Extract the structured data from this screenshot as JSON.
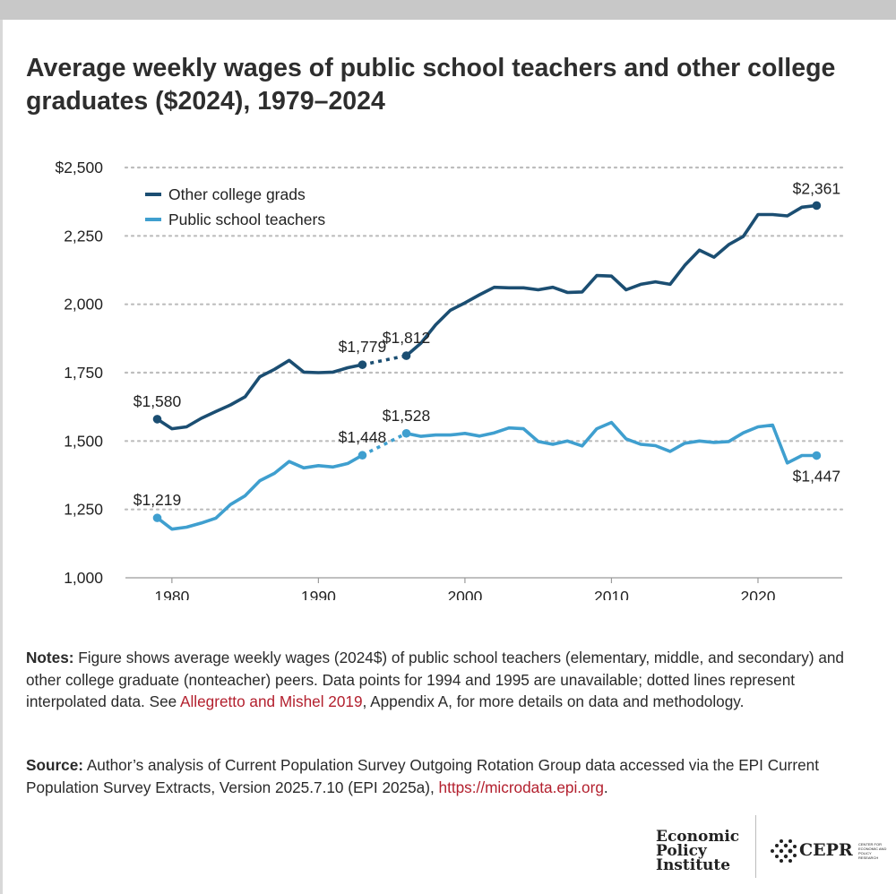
{
  "title": "Average weekly wages of public school teachers and other college graduates ($2024), 1979–2024",
  "chart_data": {
    "type": "line",
    "title": "Average weekly wages of public school teachers and other college graduates ($2024), 1979–2024",
    "xlabel": "",
    "ylabel": "",
    "xlim": [
      1977.5,
      2026
    ],
    "ylim": [
      1000,
      2500
    ],
    "x_ticks": [
      1980,
      1990,
      2000,
      2010,
      2020
    ],
    "x_tick_labels": [
      "1980",
      "1990",
      "2000",
      "2010",
      "2020"
    ],
    "y_ticks": [
      1000,
      1250,
      1500,
      1750,
      2000,
      2250,
      2500
    ],
    "y_tick_labels": [
      "1,000",
      "1,250",
      "1,500",
      "1,750",
      "2,000",
      "2,250",
      "$2,500"
    ],
    "grid": "horizontal dotted",
    "legend_position": "top-left",
    "interpolated_gap": [
      1993,
      1996
    ],
    "series": [
      {
        "name": "Other college grads",
        "color": "#1b4e72",
        "points": [
          [
            1979,
            1580
          ],
          [
            1980,
            1545
          ],
          [
            1981,
            1552
          ],
          [
            1982,
            1583
          ],
          [
            1983,
            1608
          ],
          [
            1984,
            1632
          ],
          [
            1985,
            1662
          ],
          [
            1986,
            1735
          ],
          [
            1987,
            1762
          ],
          [
            1988,
            1795
          ],
          [
            1989,
            1752
          ],
          [
            1990,
            1750
          ],
          [
            1991,
            1752
          ],
          [
            1992,
            1768
          ],
          [
            1993,
            1779
          ],
          [
            1996,
            1812
          ],
          [
            1997,
            1858
          ],
          [
            1998,
            1925
          ],
          [
            1999,
            1978
          ],
          [
            2000,
            2005
          ],
          [
            2001,
            2035
          ],
          [
            2002,
            2062
          ],
          [
            2003,
            2060
          ],
          [
            2004,
            2060
          ],
          [
            2005,
            2053
          ],
          [
            2006,
            2062
          ],
          [
            2007,
            2043
          ],
          [
            2008,
            2045
          ],
          [
            2009,
            2105
          ],
          [
            2010,
            2103
          ],
          [
            2011,
            2053
          ],
          [
            2012,
            2073
          ],
          [
            2013,
            2082
          ],
          [
            2014,
            2073
          ],
          [
            2015,
            2142
          ],
          [
            2016,
            2198
          ],
          [
            2017,
            2172
          ],
          [
            2018,
            2218
          ],
          [
            2019,
            2248
          ],
          [
            2020,
            2328
          ],
          [
            2021,
            2328
          ],
          [
            2022,
            2323
          ],
          [
            2023,
            2355
          ],
          [
            2024,
            2361
          ]
        ],
        "labeled_points": [
          {
            "year": 1979,
            "text": "$1,580"
          },
          {
            "year": 1993,
            "text": "$1,779"
          },
          {
            "year": 1996,
            "text": "$1,812"
          },
          {
            "year": 2024,
            "text": "$2,361"
          }
        ]
      },
      {
        "name": "Public school teachers",
        "color": "#3f9fcf",
        "points": [
          [
            1979,
            1219
          ],
          [
            1980,
            1178
          ],
          [
            1981,
            1185
          ],
          [
            1982,
            1200
          ],
          [
            1983,
            1218
          ],
          [
            1984,
            1268
          ],
          [
            1985,
            1300
          ],
          [
            1986,
            1355
          ],
          [
            1987,
            1382
          ],
          [
            1988,
            1425
          ],
          [
            1989,
            1402
          ],
          [
            1990,
            1410
          ],
          [
            1991,
            1405
          ],
          [
            1992,
            1418
          ],
          [
            1993,
            1448
          ],
          [
            1996,
            1528
          ],
          [
            1997,
            1517
          ],
          [
            1998,
            1522
          ],
          [
            1999,
            1522
          ],
          [
            2000,
            1528
          ],
          [
            2001,
            1518
          ],
          [
            2002,
            1530
          ],
          [
            2003,
            1548
          ],
          [
            2004,
            1545
          ],
          [
            2005,
            1498
          ],
          [
            2006,
            1488
          ],
          [
            2007,
            1500
          ],
          [
            2008,
            1482
          ],
          [
            2009,
            1545
          ],
          [
            2010,
            1568
          ],
          [
            2011,
            1508
          ],
          [
            2012,
            1488
          ],
          [
            2013,
            1483
          ],
          [
            2014,
            1462
          ],
          [
            2015,
            1492
          ],
          [
            2016,
            1500
          ],
          [
            2017,
            1495
          ],
          [
            2018,
            1498
          ],
          [
            2019,
            1530
          ],
          [
            2020,
            1552
          ],
          [
            2021,
            1558
          ],
          [
            2022,
            1420
          ],
          [
            2023,
            1447
          ],
          [
            2024,
            1447
          ]
        ],
        "labeled_points": [
          {
            "year": 1979,
            "text": "$1,219"
          },
          {
            "year": 1993,
            "text": "$1,448"
          },
          {
            "year": 1996,
            "text": "$1,528"
          },
          {
            "year": 2024,
            "text": "$1,447"
          }
        ]
      }
    ]
  },
  "notes": {
    "label": "Notes:",
    "text_before": " Figure shows average weekly wages (2024$) of public school teachers (elementary, middle, and secondary) and other college graduate (nonteacher) peers. Data points for 1994 and 1995 are unavailable; dotted lines represent interpolated data. See ",
    "link": "Allegretto and Mishel 2019",
    "text_after": ", Appendix A, for more details on data and methodology."
  },
  "source": {
    "label": "Source:",
    "text": " Author’s analysis of Current Population Survey Outgoing Rotation Group data accessed via the EPI Current Population Survey Extracts, Version 2025.7.10 (EPI 2025a),  ",
    "link": "https://microdata.epi.org",
    "end": "."
  },
  "logos": {
    "epi": [
      "Economic",
      "Policy",
      "Institute"
    ],
    "cepr": "CEPR",
    "cepr_sub": "CENTER FOR ECONOMIC AND POLICY RESEARCH"
  }
}
